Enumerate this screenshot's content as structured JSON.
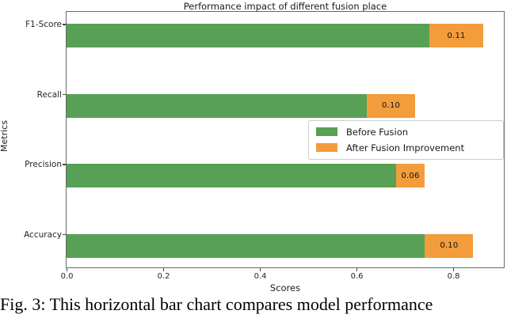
{
  "caption": {
    "text": "Fig. 3: This horizontal bar chart compares model performance"
  },
  "chart_data": {
    "type": "bar",
    "orientation": "horizontal",
    "stacked": true,
    "title": "Performance impact of different fusion place",
    "xlabel": "Scores",
    "ylabel": "Metrics",
    "categories": [
      "F1-Score",
      "Recall",
      "Precision",
      "Accuracy"
    ],
    "series": [
      {
        "name": "Before Fusion",
        "color": "#57a055",
        "values": [
          0.75,
          0.62,
          0.68,
          0.74
        ]
      },
      {
        "name": "After Fusion Improvement",
        "color": "#f39c3b",
        "values": [
          0.11,
          0.1,
          0.06,
          0.1
        ],
        "labels": [
          "0.11",
          "0.10",
          "0.06",
          "0.10"
        ]
      }
    ],
    "totals": [
      0.86,
      0.72,
      0.74,
      0.84
    ],
    "xlim": [
      0,
      0.903
    ],
    "xticks": [
      "0.0",
      "0.2",
      "0.4",
      "0.6",
      "0.8"
    ],
    "grid": false,
    "legend": {
      "position": "center right",
      "entries": [
        "Before Fusion",
        "After Fusion Improvement"
      ]
    }
  }
}
